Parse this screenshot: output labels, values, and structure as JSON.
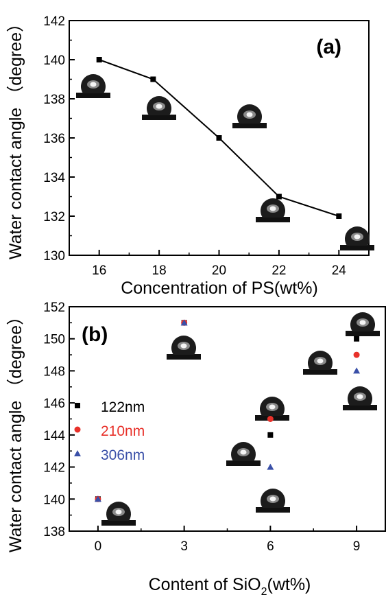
{
  "chart_data": [
    {
      "type": "line",
      "panel_label": "(a)",
      "xlabel": "Concentration of PS(wt%)",
      "ylabel": "Water contact angle （degree）",
      "xlim": [
        15,
        25
      ],
      "ylim": [
        130,
        142
      ],
      "xticks": [
        16,
        18,
        20,
        22,
        24
      ],
      "yticks": [
        130,
        132,
        134,
        136,
        138,
        140,
        142
      ],
      "series": [
        {
          "x": [
            16,
            17.8,
            20,
            22,
            24
          ],
          "y": [
            140,
            139,
            136,
            133,
            132
          ],
          "marker": "square",
          "color": "#000000"
        }
      ]
    },
    {
      "type": "scatter",
      "panel_label": "(b)",
      "xlabel": "Content of SiO2(wt%)",
      "xlabel_parts": [
        "Content of SiO",
        "2",
        "(wt%)"
      ],
      "ylabel": "Water contact angle （degree）",
      "xlim": [
        -1,
        10
      ],
      "ylim": [
        138,
        152
      ],
      "xticks": [
        0,
        3,
        6,
        9
      ],
      "yticks": [
        138,
        140,
        142,
        144,
        146,
        148,
        150,
        152
      ],
      "legend_position": "middle-left",
      "series": [
        {
          "name": "122nm",
          "marker": "square",
          "color": "#000000",
          "x": [
            0,
            3,
            6,
            9
          ],
          "y": [
            140,
            151,
            144,
            150
          ]
        },
        {
          "name": "210nm",
          "marker": "circle",
          "color": "#e8312a",
          "x": [
            0,
            3,
            6,
            9
          ],
          "y": [
            140,
            151,
            145,
            149
          ]
        },
        {
          "name": "306nm",
          "marker": "triangle",
          "color": "#3a50a8",
          "x": [
            0,
            3,
            6,
            9
          ],
          "y": [
            140,
            151,
            142,
            148
          ]
        }
      ]
    }
  ]
}
